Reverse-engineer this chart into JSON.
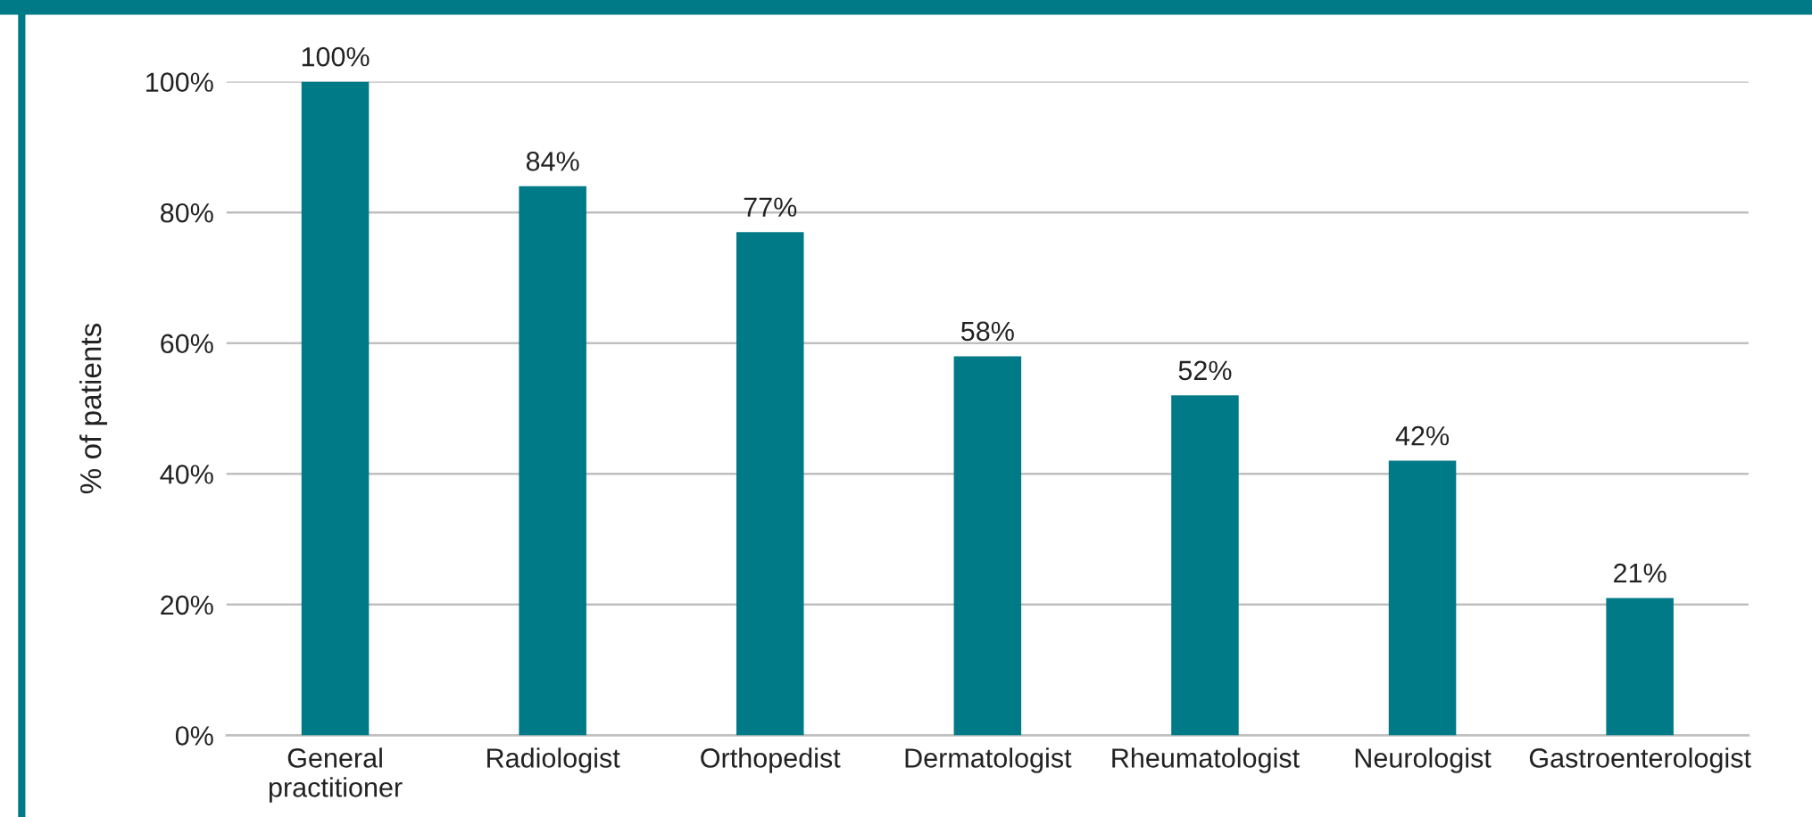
{
  "chart_data": {
    "type": "bar",
    "ylabel": "% of patients",
    "categories": [
      "General\npractitioner",
      "Radiologist",
      "Orthopedist",
      "Dermatologist",
      "Rheumatologist",
      "Neurologist",
      "Gastroenterologist"
    ],
    "values": [
      100,
      84,
      77,
      58,
      52,
      42,
      21
    ],
    "value_labels": [
      "100%",
      "84%",
      "77%",
      "58%",
      "52%",
      "42%",
      "21%"
    ],
    "color": "#007a87",
    "ylim": [
      0,
      100
    ],
    "yticks": [
      {
        "value": 0,
        "label": "0%"
      },
      {
        "value": 20,
        "label": "20%"
      },
      {
        "value": 40,
        "label": "40%"
      },
      {
        "value": 60,
        "label": "60%"
      },
      {
        "value": 80,
        "label": "80%"
      },
      {
        "value": 100,
        "label": "100%"
      }
    ],
    "grid": "y",
    "legend": false
  }
}
